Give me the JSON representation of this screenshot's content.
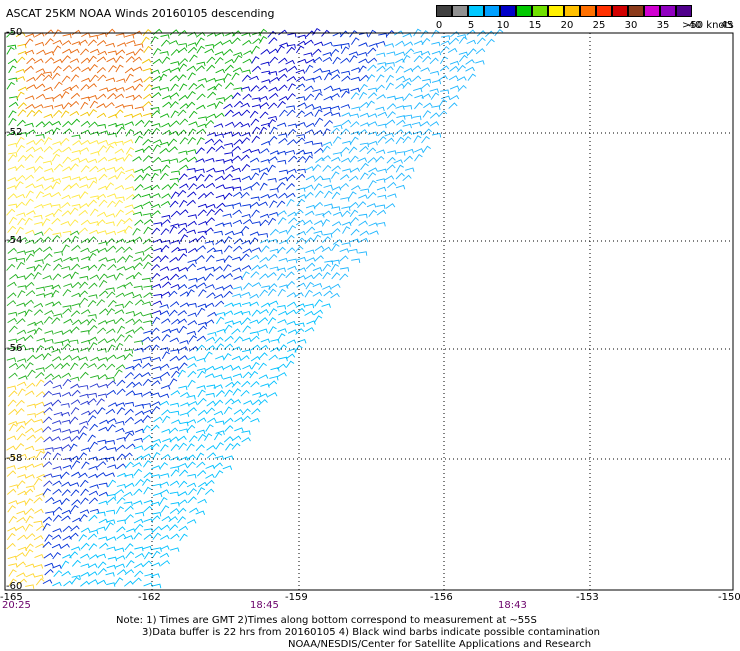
{
  "title": "ASCAT 25KM NOAA Winds 20160105 descending",
  "legend": {
    "unit": ">50 knots",
    "colors": [
      "#404040",
      "#909090",
      "#00c8ff",
      "#00a0ff",
      "#0000c8",
      "#00c800",
      "#70e000",
      "#fff000",
      "#ffc000",
      "#ff7000",
      "#ff3000",
      "#d00000",
      "#8b3a1a",
      "#d000d0",
      "#9000c0",
      "#50008c"
    ],
    "ticks": [
      "0",
      "5",
      "10",
      "15",
      "20",
      "25",
      "30",
      "35",
      "40",
      "45"
    ]
  },
  "lat_labels": [
    "-50",
    "-52",
    "-54",
    "-56",
    "-58",
    "-60"
  ],
  "lon_labels": [
    "-165",
    "-162",
    "-159",
    "-156",
    "-153",
    "-150"
  ],
  "times": {
    "left": "20:25",
    "mid": "18:45",
    "right": "18:43"
  },
  "note": {
    "line1": "Note: 1) Times are GMT 2)Times along bottom correspond to measurement at ~55S",
    "line2": "3)Data buffer is 22 hrs from 20160105 4) Black wind barbs indicate possible contamination",
    "line3": "NOAA/NESDIS/Center for Satellite Applications and Research"
  }
}
